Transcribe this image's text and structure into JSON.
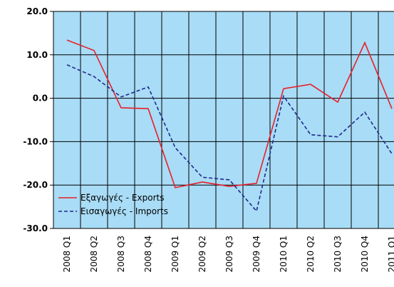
{
  "chart_data": {
    "type": "line",
    "categories": [
      "2008 Q1",
      "2008 Q2",
      "2008 Q3",
      "2008 Q4",
      "2009 Q1",
      "2009 Q2",
      "2009 Q3",
      "2009 Q4",
      "2010 Q1",
      "2010 Q2",
      "2010 Q3",
      "2010 Q4",
      "2011 Q1"
    ],
    "series": [
      {
        "name": "Εξαγωγές - Exports",
        "color": "#e8202a",
        "dash": false,
        "values": [
          13.4,
          11.0,
          -2.2,
          -2.4,
          -20.6,
          -19.3,
          -20.3,
          -19.6,
          2.2,
          3.2,
          -0.9,
          12.8,
          -2.4
        ]
      },
      {
        "name": "Εισαγωγές - Imports",
        "color": "#1f2a8c",
        "dash": true,
        "values": [
          7.7,
          5.0,
          0.3,
          2.6,
          -11.4,
          -18.2,
          -18.8,
          -26.0,
          0.5,
          -8.4,
          -8.9,
          -3.2,
          -12.8
        ]
      }
    ],
    "ylim": [
      -30,
      20
    ],
    "yticks": [
      {
        "value": -30,
        "label": "-30.0"
      },
      {
        "value": -20,
        "label": "-20.0"
      },
      {
        "value": -10,
        "label": "-10.0"
      },
      {
        "value": 0,
        "label": "0.0"
      },
      {
        "value": 10,
        "label": "10.0"
      },
      {
        "value": 20,
        "label": "20.0"
      }
    ],
    "grid": true,
    "background": "#a9dcf6",
    "legend": "lower left"
  }
}
